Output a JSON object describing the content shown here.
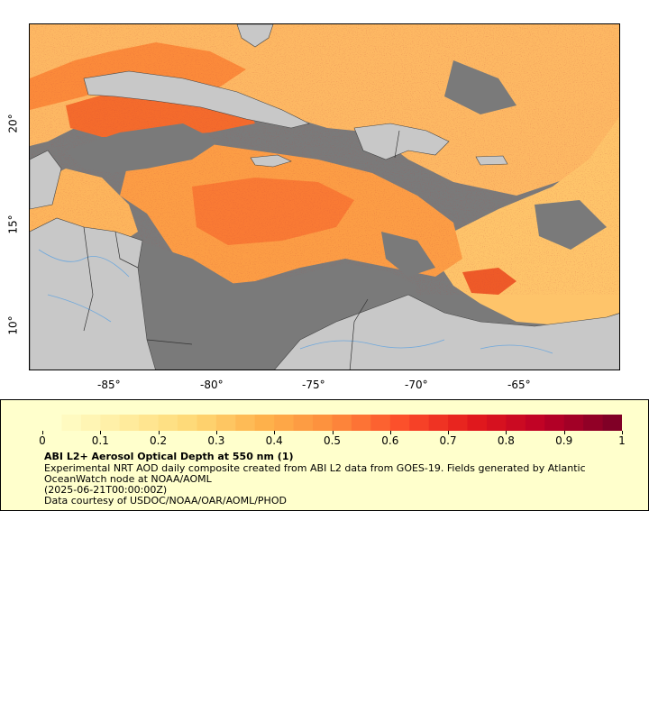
{
  "map": {
    "lon_ticks": [
      "-85°",
      "-80°",
      "-75°",
      "-70°",
      "-65°"
    ],
    "lat_ticks": [
      "20°",
      "15°",
      "10°"
    ],
    "colors": {
      "land": "#c8c8c8",
      "nodata": "#7a7a7a",
      "rivers": "#6fa8dc",
      "borders": "#444444"
    }
  },
  "legend": {
    "title": "ABI L2+ Aerosol Optical Depth at 550 nm (1)",
    "description": "Experimental NRT AOD daily composite created from ABI L2 data from GOES-19. Fields generated by Atlantic OceanWatch node at NOAA/AOML",
    "date": "(2025-06-21T00:00:00Z)",
    "credit": "Data courtesy of USDOC/NOAA/OAR/AOML/PHOD",
    "colorbar": {
      "ticks": [
        "0",
        "0.1",
        "0.2",
        "0.3",
        "0.4",
        "0.5",
        "0.6",
        "0.7",
        "0.8",
        "0.9",
        "1"
      ],
      "range": [
        0,
        1
      ],
      "colors": [
        "#ffffcc",
        "#ffeda0",
        "#fed976",
        "#feb24c",
        "#fd8d3c",
        "#fc4e2a",
        "#e31a1c",
        "#bd0026",
        "#800026"
      ]
    }
  }
}
